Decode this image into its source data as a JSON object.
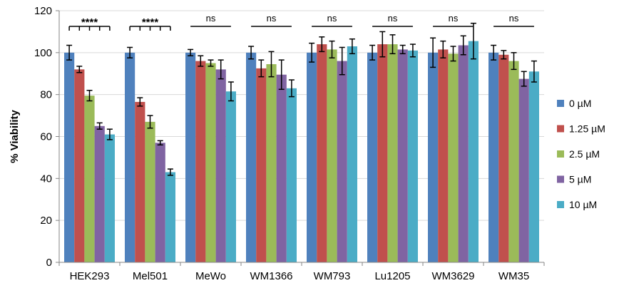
{
  "chart_data": {
    "type": "bar",
    "title": "",
    "xlabel": "",
    "ylabel": "% Viability",
    "ylim": [
      0,
      120
    ],
    "yticks": [
      0,
      20,
      40,
      60,
      80,
      100,
      120
    ],
    "grid": true,
    "legend_position": "right",
    "categories": [
      "HEK293",
      "Mel501",
      "MeWo",
      "WM1366",
      "WM793",
      "Lu1205",
      "WM3629",
      "WM35"
    ],
    "series": [
      {
        "name": "0 µM",
        "color": "#4F81BD",
        "values": [
          100,
          100,
          100,
          100,
          100,
          100,
          100,
          100
        ],
        "errors": [
          3.5,
          2.5,
          1.5,
          3,
          4.5,
          3.5,
          7,
          3.5
        ]
      },
      {
        "name": "1.25 µM",
        "color": "#C0504D",
        "values": [
          92,
          76.5,
          96,
          92.5,
          104,
          104,
          101.5,
          99
        ],
        "errors": [
          1.5,
          2,
          2.5,
          4,
          3.5,
          6,
          4,
          2
        ]
      },
      {
        "name": "2.5 µM",
        "color": "#9BBB59",
        "values": [
          79.5,
          67,
          95,
          94.5,
          101.5,
          104,
          99.5,
          96
        ],
        "errors": [
          2.5,
          3,
          1.5,
          6,
          4,
          4.5,
          3.5,
          4
        ]
      },
      {
        "name": "5 µM",
        "color": "#8064A2",
        "values": [
          65,
          57,
          92,
          89.5,
          96,
          101.5,
          103.5,
          87.5
        ],
        "errors": [
          1.5,
          1,
          4.5,
          7,
          6.5,
          2,
          4.5,
          3.5
        ]
      },
      {
        "name": "10 µM",
        "color": "#4BACC6",
        "values": [
          61,
          43,
          81.5,
          83,
          103,
          101,
          105.5,
          91
        ],
        "errors": [
          2.5,
          1.5,
          4.5,
          4,
          3.5,
          3,
          8.5,
          5
        ]
      }
    ],
    "annotations": [
      {
        "category": "HEK293",
        "text": "****",
        "stars": true
      },
      {
        "category": "Mel501",
        "text": "****",
        "stars": true
      },
      {
        "category": "MeWo",
        "text": "ns"
      },
      {
        "category": "WM1366",
        "text": "ns"
      },
      {
        "category": "WM793",
        "text": "ns"
      },
      {
        "category": "Lu1205",
        "text": "ns"
      },
      {
        "category": "WM3629",
        "text": "ns"
      },
      {
        "category": "WM35",
        "text": "ns"
      }
    ]
  }
}
